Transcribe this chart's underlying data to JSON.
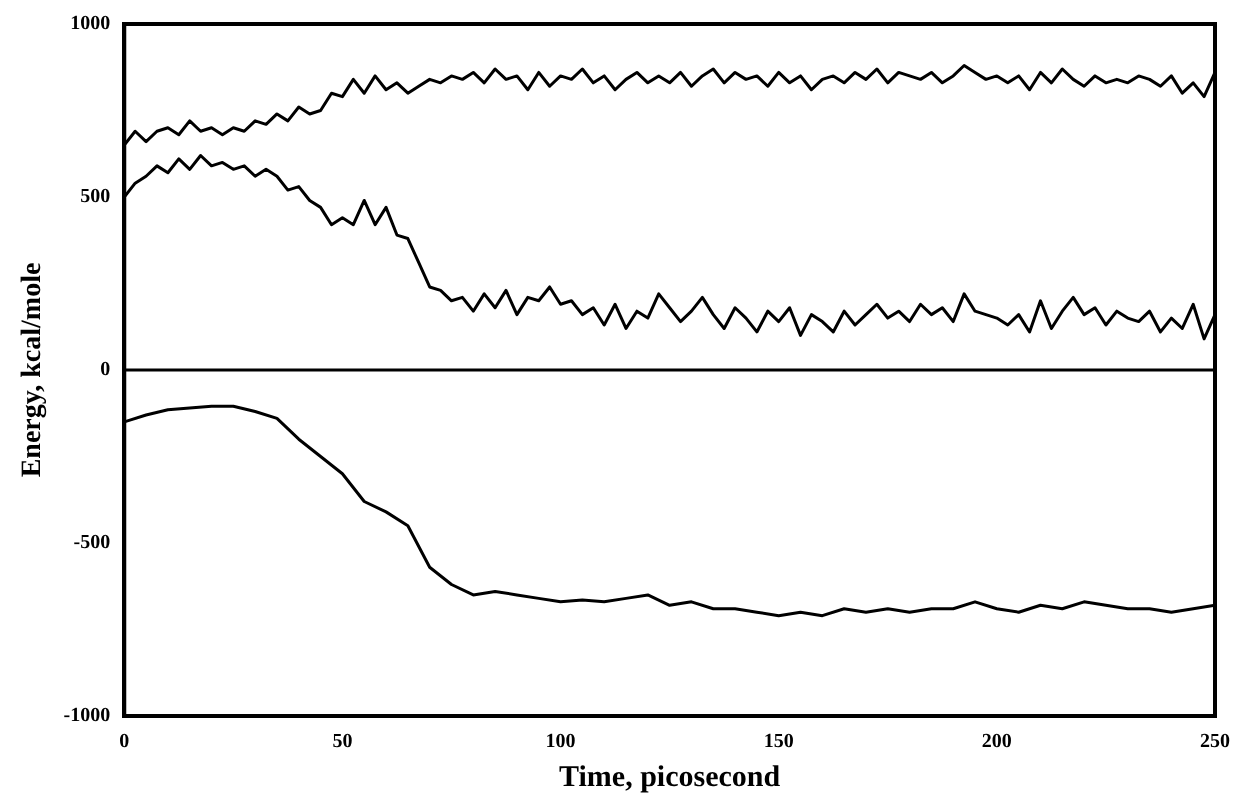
{
  "chart_data": {
    "type": "line",
    "xlabel": "Time, picosecond",
    "ylabel": "Energy, kcal/mole",
    "xlim": [
      0,
      250
    ],
    "xticks": [
      0,
      50,
      100,
      150,
      200,
      250
    ],
    "ylim": [
      -1000,
      1000
    ],
    "yticks": [
      -1000,
      -500,
      0,
      500,
      1000
    ],
    "grid": false,
    "legend": false,
    "ref_lines": [
      {
        "axis": "y",
        "value": 0,
        "color": "#000000"
      }
    ],
    "series": [
      {
        "color": "#000000",
        "x": [
          0,
          2.5,
          5,
          7.5,
          10,
          12.5,
          15,
          17.5,
          20,
          22.5,
          25,
          27.5,
          30,
          32.5,
          35,
          37.5,
          40,
          42.5,
          45,
          47.5,
          50,
          52.5,
          55,
          57.5,
          60,
          62.5,
          65,
          67.5,
          70,
          72.5,
          75,
          77.5,
          80,
          82.5,
          85,
          87.5,
          90,
          92.5,
          95,
          97.5,
          100,
          102.5,
          105,
          107.5,
          110,
          112.5,
          115,
          117.5,
          120,
          122.5,
          125,
          127.5,
          130,
          132.5,
          135,
          137.5,
          140,
          142.5,
          145,
          147.5,
          150,
          152.5,
          155,
          157.5,
          160,
          162.5,
          165,
          167.5,
          170,
          172.5,
          175,
          177.5,
          180,
          182.5,
          185,
          187.5,
          190,
          192.5,
          195,
          197.5,
          200,
          202.5,
          205,
          207.5,
          210,
          212.5,
          215,
          217.5,
          220,
          222.5,
          225,
          227.5,
          230,
          232.5,
          235,
          237.5,
          240,
          242.5,
          245,
          247.5,
          250
        ],
        "values": [
          650,
          690,
          660,
          690,
          700,
          680,
          720,
          690,
          700,
          680,
          700,
          690,
          720,
          710,
          740,
          720,
          760,
          740,
          750,
          800,
          790,
          840,
          800,
          850,
          810,
          830,
          800,
          820,
          840,
          830,
          850,
          840,
          860,
          830,
          870,
          840,
          850,
          810,
          860,
          820,
          850,
          840,
          870,
          830,
          850,
          810,
          840,
          860,
          830,
          850,
          830,
          860,
          820,
          850,
          870,
          830,
          860,
          840,
          850,
          820,
          860,
          830,
          850,
          810,
          840,
          850,
          830,
          860,
          840,
          870,
          830,
          860,
          850,
          840,
          860,
          830,
          850,
          880,
          860,
          840,
          850,
          830,
          850,
          810,
          860,
          830,
          870,
          840,
          820,
          850,
          830,
          840,
          830,
          850,
          840,
          820,
          850,
          800,
          830,
          790,
          860
        ]
      },
      {
        "color": "#000000",
        "x": [
          0,
          2.5,
          5,
          7.5,
          10,
          12.5,
          15,
          17.5,
          20,
          22.5,
          25,
          27.5,
          30,
          32.5,
          35,
          37.5,
          40,
          42.5,
          45,
          47.5,
          50,
          52.5,
          55,
          57.5,
          60,
          62.5,
          65,
          67.5,
          70,
          72.5,
          75,
          77.5,
          80,
          82.5,
          85,
          87.5,
          90,
          92.5,
          95,
          97.5,
          100,
          102.5,
          105,
          107.5,
          110,
          112.5,
          115,
          117.5,
          120,
          122.5,
          125,
          127.5,
          130,
          132.5,
          135,
          137.5,
          140,
          142.5,
          145,
          147.5,
          150,
          152.5,
          155,
          157.5,
          160,
          162.5,
          165,
          167.5,
          170,
          172.5,
          175,
          177.5,
          180,
          182.5,
          185,
          187.5,
          190,
          192.5,
          195,
          197.5,
          200,
          202.5,
          205,
          207.5,
          210,
          212.5,
          215,
          217.5,
          220,
          222.5,
          225,
          227.5,
          230,
          232.5,
          235,
          237.5,
          240,
          242.5,
          245,
          247.5,
          250
        ],
        "values": [
          500,
          540,
          560,
          590,
          570,
          610,
          580,
          620,
          590,
          600,
          580,
          590,
          560,
          580,
          560,
          520,
          530,
          490,
          470,
          420,
          440,
          420,
          490,
          420,
          470,
          390,
          380,
          310,
          240,
          230,
          200,
          210,
          170,
          220,
          180,
          230,
          160,
          210,
          200,
          240,
          190,
          200,
          160,
          180,
          130,
          190,
          120,
          170,
          150,
          220,
          180,
          140,
          170,
          210,
          160,
          120,
          180,
          150,
          110,
          170,
          140,
          180,
          100,
          160,
          140,
          110,
          170,
          130,
          160,
          190,
          150,
          170,
          140,
          190,
          160,
          180,
          140,
          220,
          170,
          160,
          150,
          130,
          160,
          110,
          200,
          120,
          170,
          210,
          160,
          180,
          130,
          170,
          150,
          140,
          170,
          110,
          150,
          120,
          190,
          90,
          160
        ]
      },
      {
        "color": "#000000",
        "x": [
          0,
          5,
          10,
          15,
          20,
          25,
          30,
          35,
          40,
          45,
          50,
          55,
          60,
          65,
          70,
          75,
          80,
          85,
          90,
          95,
          100,
          105,
          110,
          115,
          120,
          125,
          130,
          135,
          140,
          145,
          150,
          155,
          160,
          165,
          170,
          175,
          180,
          185,
          190,
          195,
          200,
          205,
          210,
          215,
          220,
          225,
          230,
          235,
          240,
          245,
          250
        ],
        "values": [
          -150,
          -130,
          -115,
          -110,
          -105,
          -105,
          -120,
          -140,
          -200,
          -250,
          -300,
          -380,
          -410,
          -450,
          -570,
          -620,
          -650,
          -640,
          -650,
          -660,
          -670,
          -665,
          -670,
          -660,
          -650,
          -680,
          -670,
          -690,
          -690,
          -700,
          -710,
          -700,
          -710,
          -690,
          -700,
          -690,
          -700,
          -690,
          -690,
          -670,
          -690,
          -700,
          -680,
          -690,
          -670,
          -680,
          -690,
          -690,
          -700,
          -690,
          -680
        ]
      }
    ]
  }
}
